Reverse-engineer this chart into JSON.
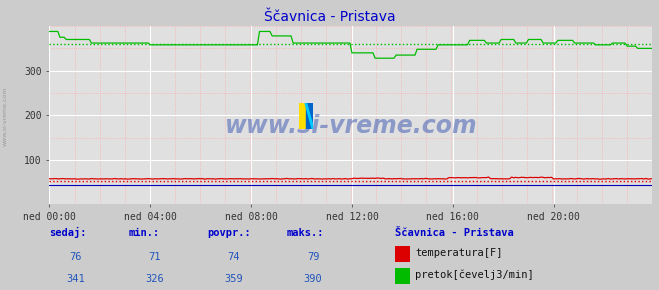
{
  "title": "Ščavnica - Pristava",
  "title_color": "#0000cc",
  "bg_color": "#cccccc",
  "plot_bg_color": "#e0e0e0",
  "grid_color_major": "#ffffff",
  "grid_color_minor": "#ffaaaa",
  "xlim": [
    0,
    287
  ],
  "ylim": [
    0,
    400
  ],
  "yticks": [
    100,
    200,
    300
  ],
  "xtick_labels": [
    "ned 00:00",
    "ned 04:00",
    "ned 08:00",
    "ned 12:00",
    "ned 16:00",
    "ned 20:00"
  ],
  "xtick_positions": [
    0,
    48,
    96,
    144,
    192,
    240
  ],
  "temp_color": "#dd0000",
  "flow_color": "#00bb00",
  "avg_dotted_color_temp": "#dd0000",
  "avg_dotted_color_flow": "#00bb00",
  "temp_avg_val": 74,
  "flow_avg_val": 359,
  "watermark": "www.si-vreme.com",
  "watermark_color": "#2244aa",
  "footer_label_color": "#0000cc",
  "footer_value_color": "#2255bb",
  "sedaj_temp": 76,
  "min_temp": 71,
  "povpr_temp": 74,
  "maks_temp": 79,
  "sedaj_flow": 341,
  "min_flow": 326,
  "povpr_flow": 359,
  "maks_flow": 390,
  "temp_ymin": 71,
  "temp_ymax": 79,
  "flow_ymin": 326,
  "flow_ymax": 390
}
